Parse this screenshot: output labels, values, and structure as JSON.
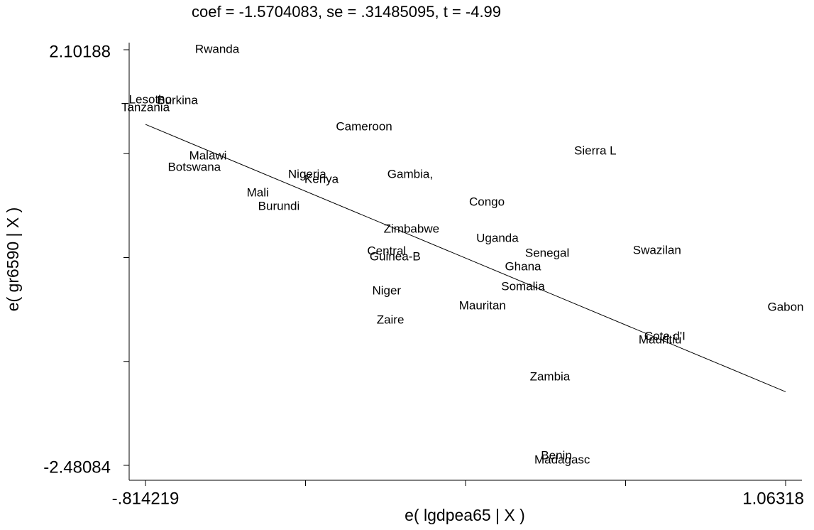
{
  "chart_data": {
    "type": "scatter",
    "title": "coef = -1.5704083, se = .31485095, t = -4.99",
    "x_label": "e( lgdpea65 | X )",
    "y_label": "e( gr6590 | X )",
    "xlim": [
      -0.814219,
      1.06318
    ],
    "ylim": [
      -2.48084,
      2.10188
    ],
    "xticks": [
      {
        "value": -0.814219,
        "label": "-.814219"
      },
      1.06318
    ],
    "yticks": [
      -2.48084,
      2.10188
    ],
    "xminorticks": [
      -0.3449,
      0.1245,
      0.5938
    ],
    "yminorticks": [
      -1.33516,
      -0.18946,
      0.9562
    ],
    "color": "#000000",
    "fit": {
      "slope": -1.5704083,
      "intercept": 0
    },
    "labels": [
      "Rwanda",
      "Lesotho",
      "Burkina",
      "Tanzania",
      "Cameroon",
      "Sierra L",
      "Malawi",
      "Botswana",
      "Nigeria",
      "Kenya",
      "Gambia,",
      "Mali",
      "Burundi",
      "Congo",
      "Zimbabwe",
      "Uganda",
      "Central",
      "Guinea-B",
      "Senegal",
      "Swazilan",
      "Ghana",
      "Somalia",
      "Niger",
      "Mauritan",
      "Gabon",
      "Zaire",
      "Cote d'I",
      "Mauritiu",
      "Zambia",
      "Benin",
      "Madagasc"
    ],
    "x": [
      -0.604,
      -0.8,
      -0.7205,
      -0.814219,
      -0.173,
      0.505,
      -0.631,
      -0.671,
      -0.34,
      -0.298,
      -0.038,
      -0.485,
      -0.423,
      0.187,
      -0.034,
      0.218,
      -0.107,
      -0.082,
      0.364,
      0.686,
      0.293,
      0.293,
      -0.107,
      0.174,
      1.06318,
      -0.096,
      0.709,
      0.695,
      0.372,
      0.391,
      0.408
    ],
    "y": [
      2.10188,
      1.546,
      1.538,
      1.459,
      1.248,
      0.982,
      0.927,
      0.802,
      0.723,
      0.668,
      0.723,
      0.519,
      0.371,
      0.418,
      0.12,
      0.018,
      -0.123,
      -0.185,
      -0.146,
      -0.115,
      -0.295,
      -0.514,
      -0.561,
      -0.726,
      -0.741,
      -0.883,
      -1.063,
      -1.102,
      -1.509,
      -2.379,
      -2.426
    ]
  }
}
